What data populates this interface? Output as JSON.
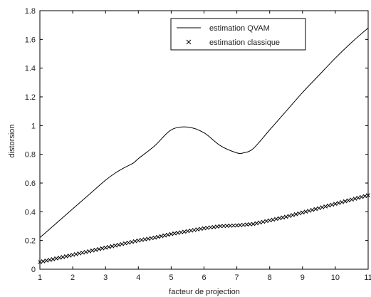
{
  "chart_data": {
    "type": "line",
    "xlabel": "facteur de projection",
    "ylabel": "distorsion",
    "xlim": [
      1,
      11
    ],
    "ylim": [
      0,
      1.8
    ],
    "xticks": [
      "1",
      "2",
      "3",
      "4",
      "5",
      "6",
      "7",
      "8",
      "9",
      "10",
      "11"
    ],
    "yticks": [
      "0",
      "0.2",
      "0.4",
      "0.6",
      "0.8",
      "1",
      "1.2",
      "1.4",
      "1.6",
      "1.8"
    ],
    "grid": false,
    "legend_position": "top-right",
    "series": [
      {
        "name": "estimation QVAM",
        "style": "solid-line",
        "x": [
          1,
          1.5,
          2,
          2.5,
          3,
          3.3,
          3.6,
          3.85,
          4,
          4.5,
          5,
          5.5,
          6,
          6.5,
          7,
          7.2,
          7.5,
          8,
          8.5,
          9,
          9.5,
          10,
          10.5,
          11
        ],
        "y": [
          0.22,
          0.32,
          0.42,
          0.52,
          0.62,
          0.67,
          0.71,
          0.74,
          0.77,
          0.86,
          0.97,
          0.99,
          0.95,
          0.86,
          0.81,
          0.81,
          0.84,
          0.97,
          1.1,
          1.23,
          1.35,
          1.47,
          1.58,
          1.68
        ]
      },
      {
        "name": "estimation classique",
        "style": "x-markers",
        "x": [
          1,
          1.5,
          2,
          2.5,
          3,
          3.5,
          4,
          4.5,
          5,
          5.5,
          6,
          6.5,
          7,
          7.5,
          8,
          8.5,
          9,
          9.5,
          10,
          10.5,
          11
        ],
        "y": [
          0.05,
          0.075,
          0.1,
          0.125,
          0.15,
          0.175,
          0.2,
          0.22,
          0.245,
          0.265,
          0.285,
          0.3,
          0.305,
          0.315,
          0.34,
          0.365,
          0.395,
          0.425,
          0.455,
          0.485,
          0.515
        ]
      }
    ]
  }
}
